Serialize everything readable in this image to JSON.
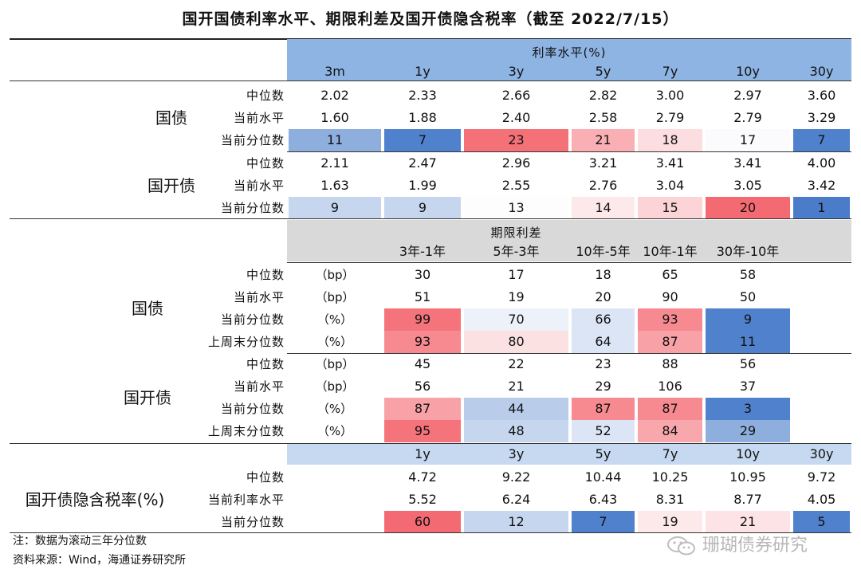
{
  "title": "国开国债利率水平、期限利差及国开债隐含税率（截至 2022/7/15）",
  "colors": {
    "header_blue": "#8EB4E3",
    "header_grey": "#D9D9D9"
  },
  "section1": {
    "header": "利率水平(%)",
    "columns": [
      "3m",
      "1y",
      "3y",
      "5y",
      "7y",
      "10y",
      "30y"
    ],
    "groups": [
      {
        "name": "国债",
        "rows": [
          {
            "label": "中位数",
            "values": [
              "2.02",
              "2.33",
              "2.66",
              "2.82",
              "3.00",
              "2.97",
              "3.60"
            ]
          },
          {
            "label": "当前水平",
            "values": [
              "1.60",
              "1.88",
              "2.40",
              "2.58",
              "2.79",
              "2.79",
              "3.29"
            ]
          },
          {
            "label": "当前分位数",
            "values": [
              "11",
              "7",
              "23",
              "21",
              "18",
              "17",
              "7"
            ],
            "colors": [
              "#8EAEDD",
              "#4F81CC",
              "#F47178",
              "#F9AFB3",
              "#FCDDE0",
              "#FBFBFD",
              "#4F81CC"
            ]
          }
        ]
      },
      {
        "name": "国开债",
        "rows": [
          {
            "label": "中位数",
            "values": [
              "2.11",
              "2.47",
              "2.96",
              "3.21",
              "3.41",
              "3.41",
              "4.00"
            ]
          },
          {
            "label": "当前水平",
            "values": [
              "1.63",
              "1.99",
              "2.55",
              "2.76",
              "3.04",
              "3.05",
              "3.42"
            ]
          },
          {
            "label": "当前分位数",
            "values": [
              "9",
              "9",
              "13",
              "14",
              "15",
              "20",
              "1"
            ],
            "colors": [
              "#C6D6EE",
              "#C6D6EE",
              "#FDFDFE",
              "#FDE9EA",
              "#FCD3D6",
              "#F36A72",
              "#4A7CC9"
            ]
          }
        ]
      }
    ]
  },
  "section2": {
    "header": "期限利差",
    "columns": [
      "3年-1年",
      "5年-3年",
      "10年-5年",
      "10年-1年",
      "30年-10年"
    ],
    "groups": [
      {
        "name": "国债",
        "rows": [
          {
            "label": "中位数",
            "unit": "（bp）",
            "values": [
              "30",
              "17",
              "18",
              "65",
              "58"
            ]
          },
          {
            "label": "当前水平",
            "unit": "（bp）",
            "values": [
              "51",
              "19",
              "20",
              "90",
              "50"
            ]
          },
          {
            "label": "当前分位数",
            "unit": "（%）",
            "values": [
              "99",
              "70",
              "66",
              "93",
              "9"
            ],
            "colors": [
              "#F5747B",
              "#EDF1FA",
              "#DCE5F5",
              "#F68A90",
              "#4F81CC"
            ]
          },
          {
            "label": "上周末分位数",
            "unit": "（%）",
            "values": [
              "93",
              "80",
              "64",
              "87",
              "11"
            ],
            "colors": [
              "#F68A90",
              "#FCE1E3",
              "#DCE5F5",
              "#F8A2A7",
              "#4F81CC"
            ]
          }
        ]
      },
      {
        "name": "国开债",
        "rows": [
          {
            "label": "中位数",
            "unit": "（bp）",
            "values": [
              "45",
              "22",
              "23",
              "88",
              "56"
            ]
          },
          {
            "label": "当前水平",
            "unit": "（bp）",
            "values": [
              "56",
              "21",
              "29",
              "106",
              "37"
            ]
          },
          {
            "label": "当前分位数",
            "unit": "（%）",
            "values": [
              "87",
              "44",
              "87",
              "87",
              "3"
            ],
            "colors": [
              "#F8A2A7",
              "#B9CDEB",
              "#F68A90",
              "#F68A90",
              "#4F81CC"
            ]
          },
          {
            "label": "上周末分位数",
            "unit": "（%）",
            "values": [
              "95",
              "48",
              "52",
              "84",
              "29"
            ],
            "colors": [
              "#F5747B",
              "#C6D6EE",
              "#DCE5F5",
              "#F8A8AC",
              "#8EAEDD"
            ]
          }
        ]
      }
    ]
  },
  "section3": {
    "columns": [
      "1y",
      "3y",
      "5y",
      "7y",
      "10y",
      "30y"
    ],
    "group": "国开债隐含税率(%)",
    "rows": [
      {
        "label": "中位数",
        "values": [
          "4.72",
          "9.22",
          "10.44",
          "10.25",
          "10.95",
          "9.72"
        ]
      },
      {
        "label": "当前利率水平",
        "values": [
          "5.52",
          "6.24",
          "6.43",
          "8.31",
          "8.77",
          "4.05"
        ]
      },
      {
        "label": "当前分位数",
        "values": [
          "60",
          "12",
          "7",
          "19",
          "21",
          "5"
        ],
        "colors": [
          "#F36A72",
          "#C6D6EE",
          "#4F81CC",
          "#FDE9EA",
          "#FDE3E5",
          "#4F81CC"
        ]
      }
    ]
  },
  "notes": [
    "注：数据为滚动三年分位数",
    "资料来源：Wind，海通证券研究所"
  ],
  "watermark": "珊瑚债券研究"
}
